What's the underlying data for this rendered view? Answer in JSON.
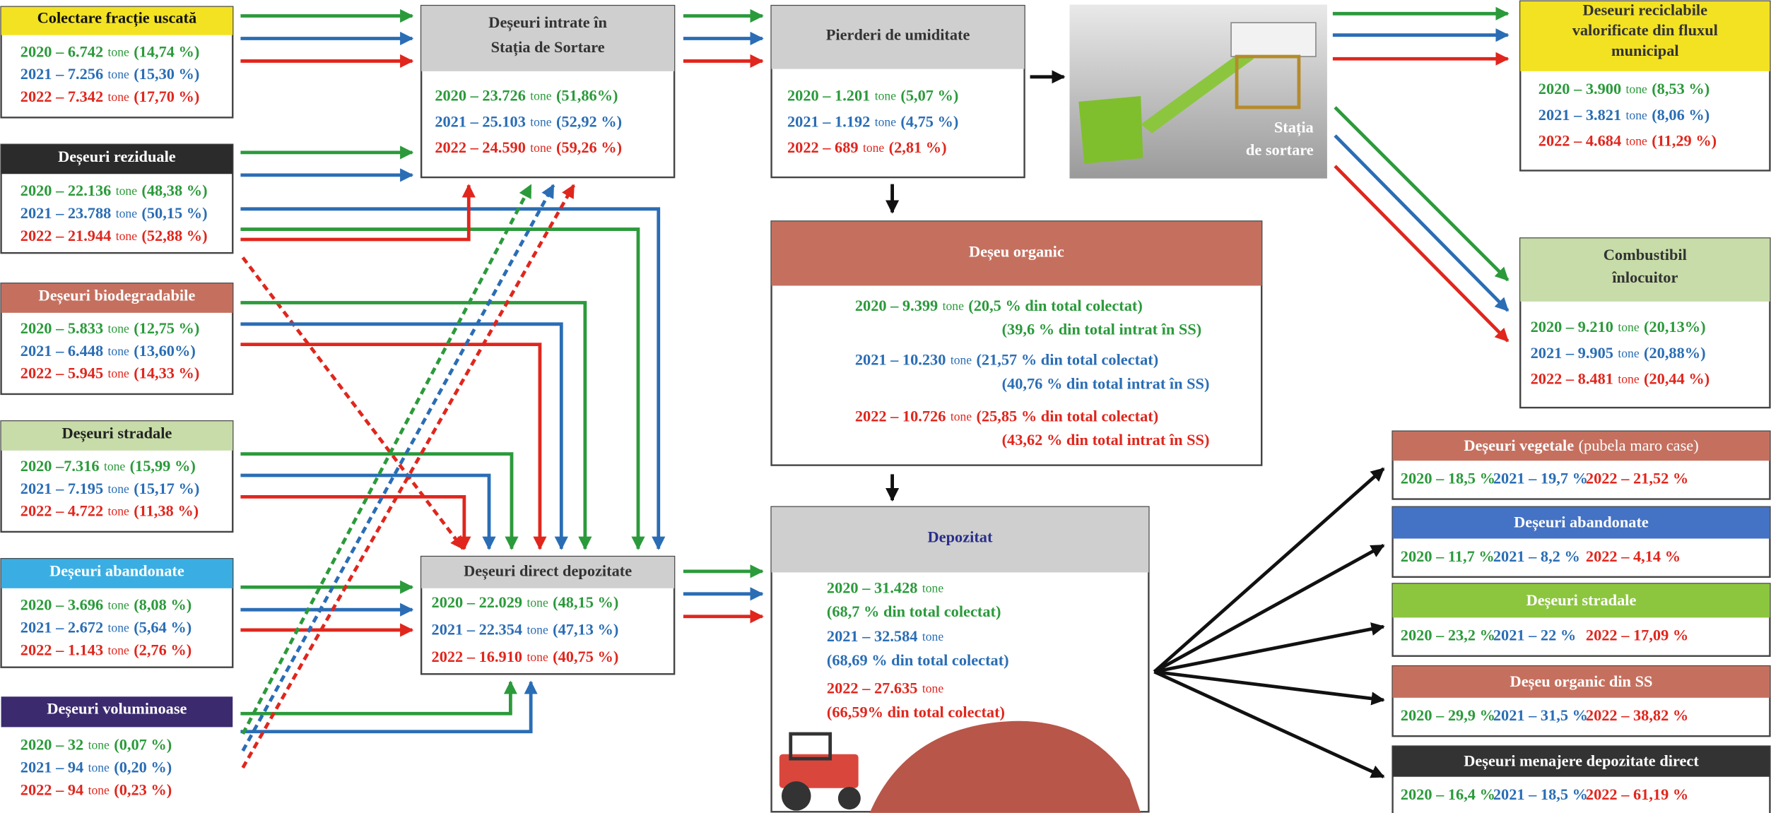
{
  "boxes": [
    {
      "title": [
        "Colectare fracție uscată"
      ],
      "rows": [
        {
          "label": "2020 – 6.742",
          "unit": "tone",
          "share": "(14,74 %)"
        },
        {
          "label": "2021 – 7.256",
          "unit": "tone",
          "share": "(15,30 %)"
        },
        {
          "label": "2022 – 7.342",
          "unit": "tone",
          "share": "(17,70 %)"
        }
      ]
    },
    {
      "title": [
        "Deșeuri reziduale"
      ],
      "rows": [
        {
          "label": "2020 – 22.136",
          "unit": "tone",
          "share": "(48,38 %)"
        },
        {
          "label": "2021 – 23.788",
          "unit": "tone",
          "share": "(50,15 %)"
        },
        {
          "label": "2022 – 21.944",
          "unit": "tone",
          "share": "(52,88 %)"
        }
      ]
    },
    {
      "title": [
        "Deșeuri biodegradabile"
      ],
      "rows": [
        {
          "label": "2020 – 5.833",
          "unit": "tone",
          "share": "(12,75 %)"
        },
        {
          "label": "2021 – 6.448",
          "unit": "tone",
          "share": "(13,60%)"
        },
        {
          "label": "2022 – 5.945",
          "unit": "tone",
          "share": "(14,33 %)"
        }
      ]
    },
    {
      "title": [
        "Deșeuri stradale"
      ],
      "rows": [
        {
          "label": "2020 –7.316",
          "unit": "tone",
          "share": "(15,99 %)"
        },
        {
          "label": "2021 – 7.195",
          "unit": "tone",
          "share": "(15,17 %)"
        },
        {
          "label": "2022 – 4.722",
          "unit": "tone",
          "share": "(11,38 %)"
        }
      ]
    },
    {
      "title": [
        "Deșeuri abandonate"
      ],
      "rows": [
        {
          "label": "2020 – 3.696",
          "unit": "tone",
          "share": "(8,08 %)"
        },
        {
          "label": "2021 – 2.672",
          "unit": "tone",
          "share": "(5,64 %)"
        },
        {
          "label": "2022 – 1.143",
          "unit": "tone",
          "share": "(2,76 %)"
        }
      ]
    },
    {
      "title": [
        "Deșeuri voluminoase"
      ],
      "rows": [
        {
          "label": "2020 – 32",
          "unit": "tone",
          "share": "(0,07 %)"
        },
        {
          "label": "2021 – 94",
          "unit": "tone",
          "share": "(0,20 %)"
        },
        {
          "label": "2022 – 94",
          "unit": "tone",
          "share": "(0,23 %)"
        }
      ]
    },
    {
      "title": [
        "Deșeuri intrate în",
        "Stația de Sortare"
      ],
      "rows": [
        {
          "label": "2020 – 23.726",
          "unit": "tone",
          "share": "(51,86%)"
        },
        {
          "label": "2021 – 25.103",
          "unit": "tone",
          "share": "(52,92 %)"
        },
        {
          "label": "2022 – 24.590",
          "unit": "tone",
          "share": "(59,26 %)"
        }
      ]
    },
    {
      "title": [
        "Pierderi de umiditate"
      ],
      "rows": [
        {
          "label": "2020 – 1.201",
          "unit": "tone",
          "share": "(5,07 %)"
        },
        {
          "label": "2021 – 1.192",
          "unit": "tone",
          "share": "(4,75 %)"
        },
        {
          "label": "2022 – 689",
          "unit": "tone",
          "share": "(2,81 %)"
        }
      ]
    },
    {
      "title": [
        "Deseuri reciclabile",
        "valorificate din fluxul",
        "municipal"
      ],
      "rows": [
        {
          "label": "2020 – 3.900",
          "unit": "tone",
          "share": "(8,53 %)"
        },
        {
          "label": "2021 – 3.821",
          "unit": "tone",
          "share": "(8,06 %)"
        },
        {
          "label": "2022 – 4.684",
          "unit": "tone",
          "share": "(11,29 %)"
        }
      ]
    },
    {
      "title": [
        "Combustibil",
        "înlocuitor"
      ],
      "rows": [
        {
          "label": "2020 – 9.210",
          "unit": "tone",
          "share": "(20,13%)"
        },
        {
          "label": "2021 – 9.905",
          "unit": "tone",
          "share": "(20,88%)"
        },
        {
          "label": "2022 – 8.481",
          "unit": "tone",
          "share": "(20,44 %)"
        }
      ]
    },
    {
      "title": [
        "Deșeu organic"
      ],
      "rows": [
        {
          "label": "2020 – 9.399",
          "unit": "tone",
          "share": "(20,5 % din total colectat)",
          "share2": "(39,6 % din total intrat în SS)"
        },
        {
          "label": "2021 – 10.230",
          "unit": "tone",
          "share": "(21,57 % din total colectat)",
          "share2": "(40,76 % din total intrat în SS)"
        },
        {
          "label": "2022 –  10.726",
          "unit": "tone",
          "share": "(25,85 % din total colectat)",
          "share2": "(43,62 % din total intrat în SS)"
        }
      ]
    },
    {
      "title": [
        "Deșeuri direct depozitate"
      ],
      "rows": [
        {
          "label": "2020 – 22.029",
          "unit": "tone",
          "share": "(48,15 %)"
        },
        {
          "label": "2021 – 22.354",
          "unit": "tone",
          "share": "(47,13 %)"
        },
        {
          "label": "2022 – 16.910",
          "unit": "tone",
          "share": "(40,75 %)"
        }
      ]
    },
    {
      "title": [
        "Depozitat"
      ],
      "rows": [
        {
          "label": "2020 – 31.428",
          "unit": "tone",
          "share": "(68,7 % din total colectat)"
        },
        {
          "label": "2021 – 32.584",
          "unit": "tone",
          "share": "(68,69 % din total colectat)"
        },
        {
          "label": "2022 – 27.635",
          "unit": "tone",
          "share": "(66,59% din total colectat)"
        }
      ]
    }
  ],
  "sorting_station": {
    "title": [
      "Stația",
      "de sortare"
    ]
  },
  "results": [
    {
      "title": "Deșeuri vegetale",
      "note": "(pubela maro case)",
      "values": [
        "2020 – 18,5 %",
        "2021 – 19,7 %",
        "2022 – 21,52 %"
      ]
    },
    {
      "title": "Deșeuri abandonate",
      "values": [
        "2020 – 11,7 %",
        "2021 – 8,2 %",
        "2022 – 4,14 %"
      ]
    },
    {
      "title": "Deșeuri stradale",
      "values": [
        "2020 – 23,2 %",
        "2021 – 22 %",
        "2022 – 17,09 %"
      ]
    },
    {
      "title": "Deșeu organic din SS",
      "values": [
        "2020 – 29,9 %",
        "2021 – 31,5 %",
        "2022 – 38,82 %"
      ]
    },
    {
      "title": "Deșeuri menajere depozitate direct",
      "values": [
        "2020 – 16,4 %",
        "2021 – 18,5 %",
        "2022 – 61,19 %"
      ]
    }
  ]
}
